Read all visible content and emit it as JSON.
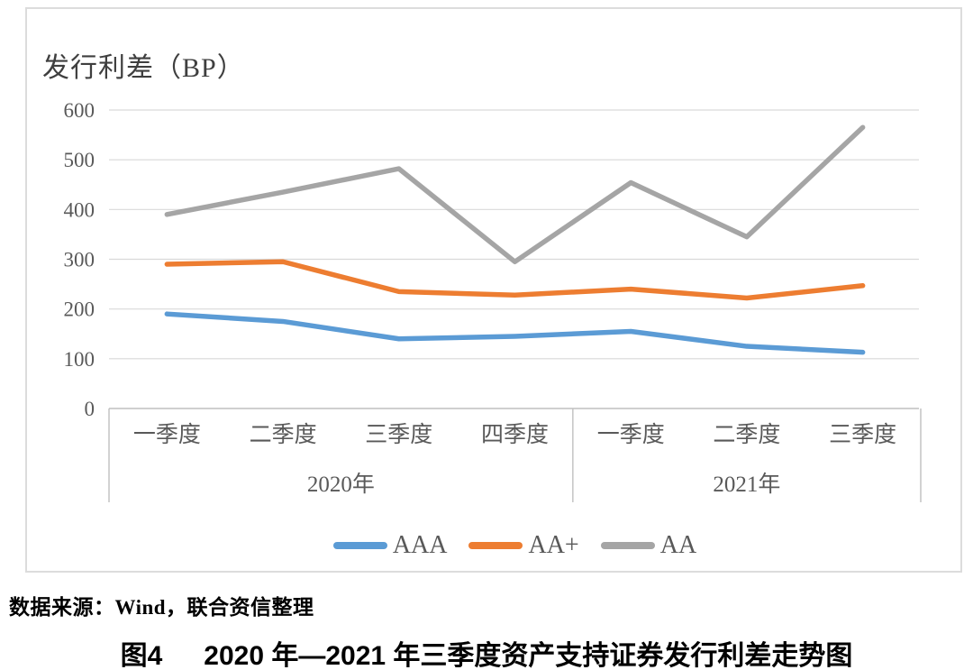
{
  "chart": {
    "title": "发行利差（BP）",
    "source_note": "数据来源：Wind，联合资信整理",
    "caption_label": "图4",
    "caption_text": "2020 年—2021 年三季度资产支持证券发行利差走势图"
  },
  "chart_data": {
    "type": "line",
    "title": "发行利差（BP）",
    "xlabel": "",
    "ylabel": "发行利差（BP）",
    "ylim": [
      0,
      600
    ],
    "ytick_step": 100,
    "grid": true,
    "legend_position": "bottom",
    "categories": [
      "一季度",
      "二季度",
      "三季度",
      "四季度",
      "一季度",
      "二季度",
      "三季度"
    ],
    "category_groups": [
      {
        "label": "2020年",
        "span": 4
      },
      {
        "label": "2021年",
        "span": 3
      }
    ],
    "series": [
      {
        "name": "AAA",
        "color": "#5B9BD5",
        "values": [
          190,
          175,
          140,
          145,
          155,
          125,
          113
        ]
      },
      {
        "name": "AA+",
        "color": "#ED7D31",
        "values": [
          290,
          295,
          235,
          228,
          240,
          222,
          247
        ]
      },
      {
        "name": "AA",
        "color": "#A5A5A5",
        "values": [
          390,
          435,
          482,
          295,
          454,
          345,
          565
        ]
      }
    ],
    "style": {
      "gridline_color": "#d9d9d9",
      "axis_color": "#bfbfbf",
      "tick_label_color": "#595959",
      "line_width": 5.5
    }
  }
}
